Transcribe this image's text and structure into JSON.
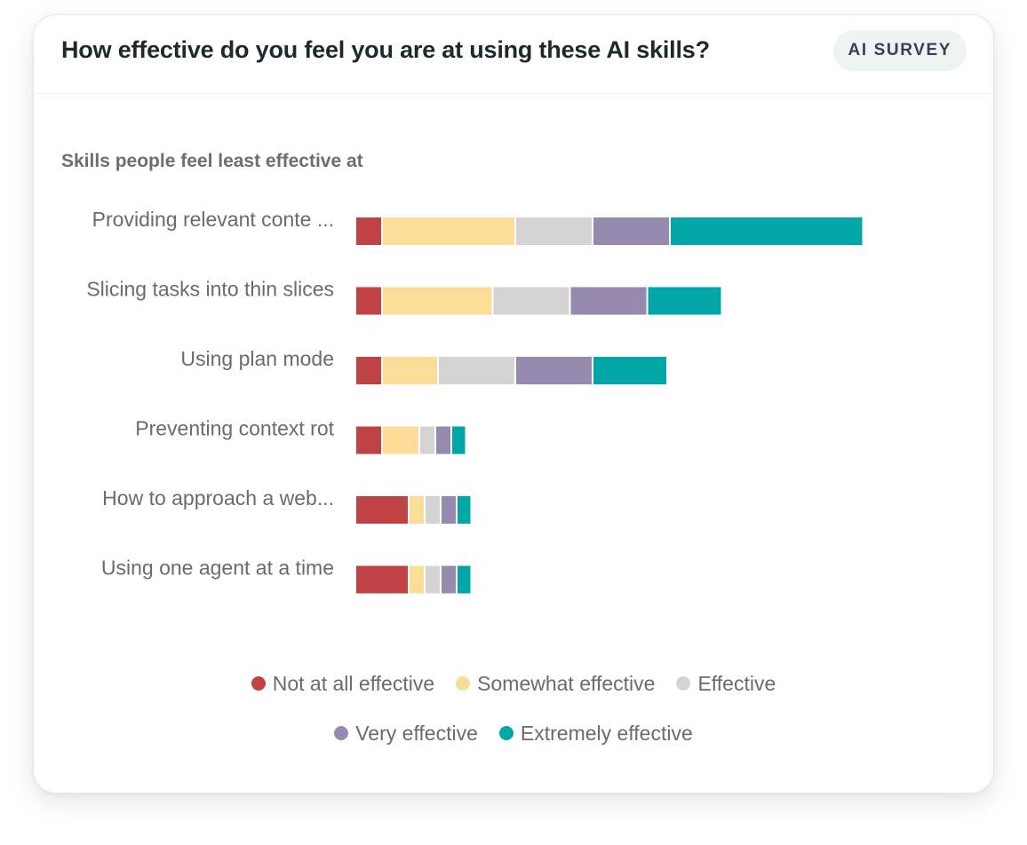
{
  "header": {
    "title": "How effective do you feel you are at using these AI skills?",
    "badge": "AI SURVEY"
  },
  "colors": {
    "not_at_all": "#c04245",
    "somewhat": "#fcdd98",
    "effective": "#d4d4d4",
    "very": "#968aae",
    "extremely": "#02a6a6"
  },
  "chart_data": {
    "type": "bar",
    "orientation": "horizontal",
    "stacked": true,
    "title": "",
    "subtitle": "Skills people feel least effective at",
    "xlabel": "",
    "ylabel": "",
    "grid": false,
    "legend_position": "bottom",
    "categories": [
      "Providing relevant conte ...",
      "Slicing tasks into thin slices",
      "Using plan mode",
      "Preventing context rot",
      "How to approach a web...",
      "Using one agent at a time"
    ],
    "series": [
      {
        "name": "Not at all effective",
        "color_key": "not_at_all",
        "values": [
          2,
          2,
          2,
          2,
          4,
          4
        ]
      },
      {
        "name": "Somewhat effective",
        "color_key": "somewhat",
        "values": [
          10,
          8.3,
          4.2,
          2.8,
          1.2,
          1.2
        ]
      },
      {
        "name": "Effective",
        "color_key": "effective",
        "values": [
          5.8,
          5.8,
          5.8,
          1.2,
          1.2,
          1.2
        ]
      },
      {
        "name": "Very effective",
        "color_key": "very",
        "values": [
          5.8,
          5.8,
          5.8,
          1.2,
          1.2,
          1.2
        ]
      },
      {
        "name": "Extremely effective",
        "color_key": "extremely",
        "values": [
          14.5,
          5.6,
          5.6,
          1.1,
          1.1,
          1.1
        ]
      }
    ],
    "xlim": [
      0,
      40
    ]
  }
}
